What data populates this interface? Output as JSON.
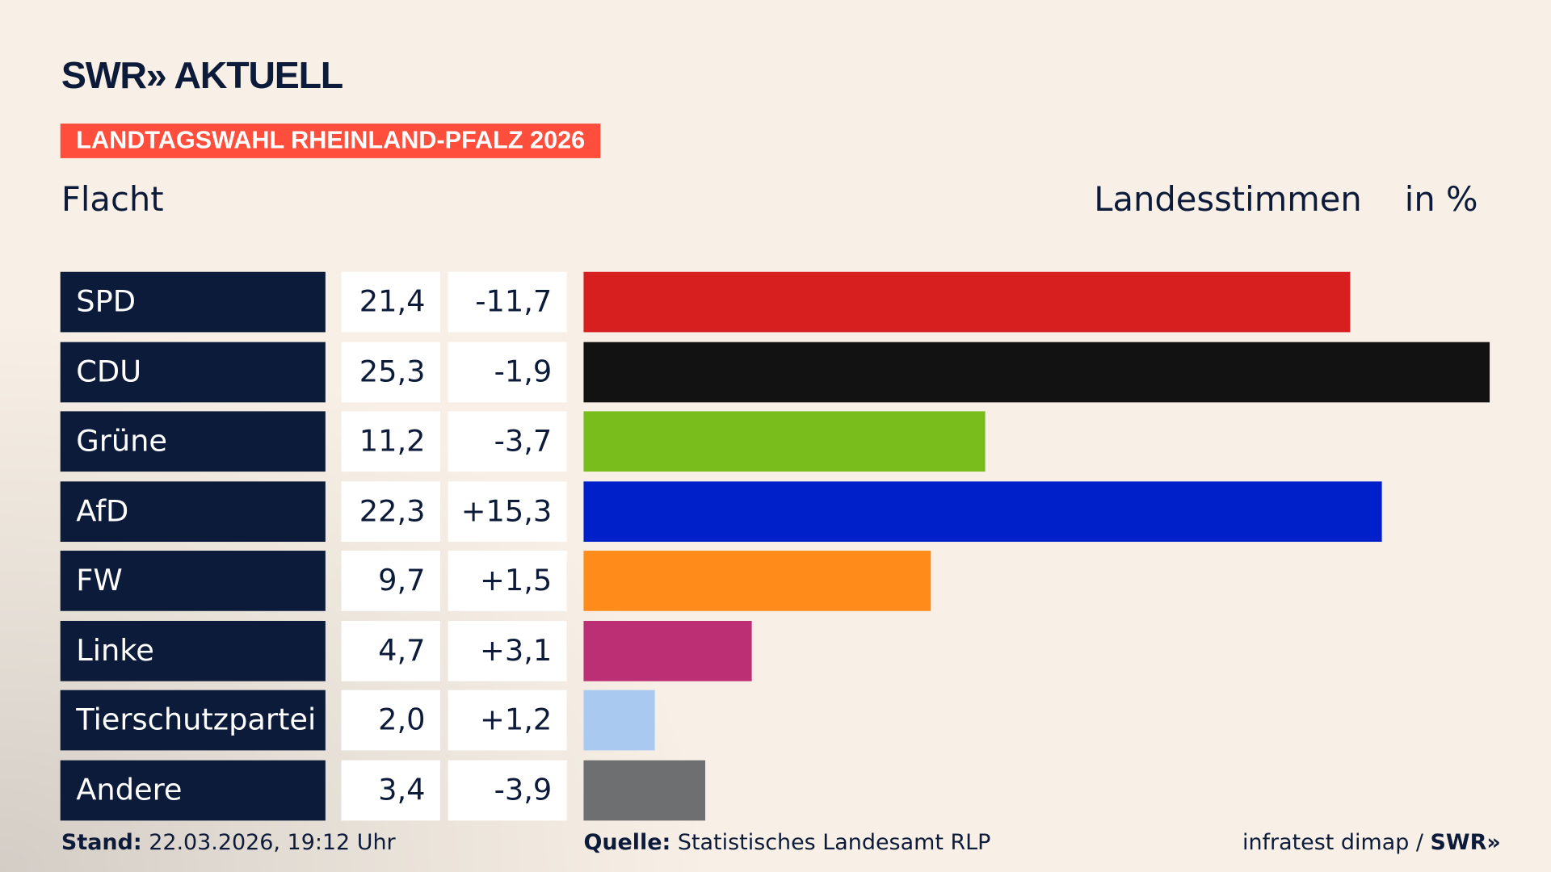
{
  "header": {
    "logo": "SWR» AKTUELL",
    "tag": "LANDTAGSWAHL RHEINLAND-PFALZ 2026",
    "subtitle": "Flacht",
    "measure": "Landesstimmen",
    "unit": "in %"
  },
  "chart_data": {
    "type": "bar",
    "orientation": "horizontal",
    "xlim": [
      0,
      25.3
    ],
    "grid": false,
    "categories": [
      "SPD",
      "CDU",
      "Grüne",
      "AfD",
      "FW",
      "Linke",
      "Tierschutzpartei",
      "Andere"
    ],
    "values": [
      21.4,
      25.3,
      11.2,
      22.3,
      9.7,
      4.7,
      2.0,
      3.4
    ],
    "value_labels": [
      "21,4",
      "25,3",
      "11,2",
      "22,3",
      "9,7",
      "4,7",
      "2,0",
      "3,4"
    ],
    "diff_labels": [
      "-11,7",
      "-1,9",
      "-3,7",
      "+15,3",
      "+1,5",
      "+3,1",
      "+1,2",
      "-3,9"
    ],
    "colors": [
      "#d81f1f",
      "#121212",
      "#78bd1c",
      "#0021c9",
      "#ff8c1a",
      "#bd2f74",
      "#a9c9f1",
      "#6e6f71"
    ]
  },
  "footer": {
    "stand_label": "Stand:",
    "stand": "22.03.2026, 19:12 Uhr",
    "source_label": "Quelle:",
    "source": "Statistisches Landesamt RLP",
    "credit": "infratest dimap / ",
    "credit_brand": "SWR»"
  }
}
